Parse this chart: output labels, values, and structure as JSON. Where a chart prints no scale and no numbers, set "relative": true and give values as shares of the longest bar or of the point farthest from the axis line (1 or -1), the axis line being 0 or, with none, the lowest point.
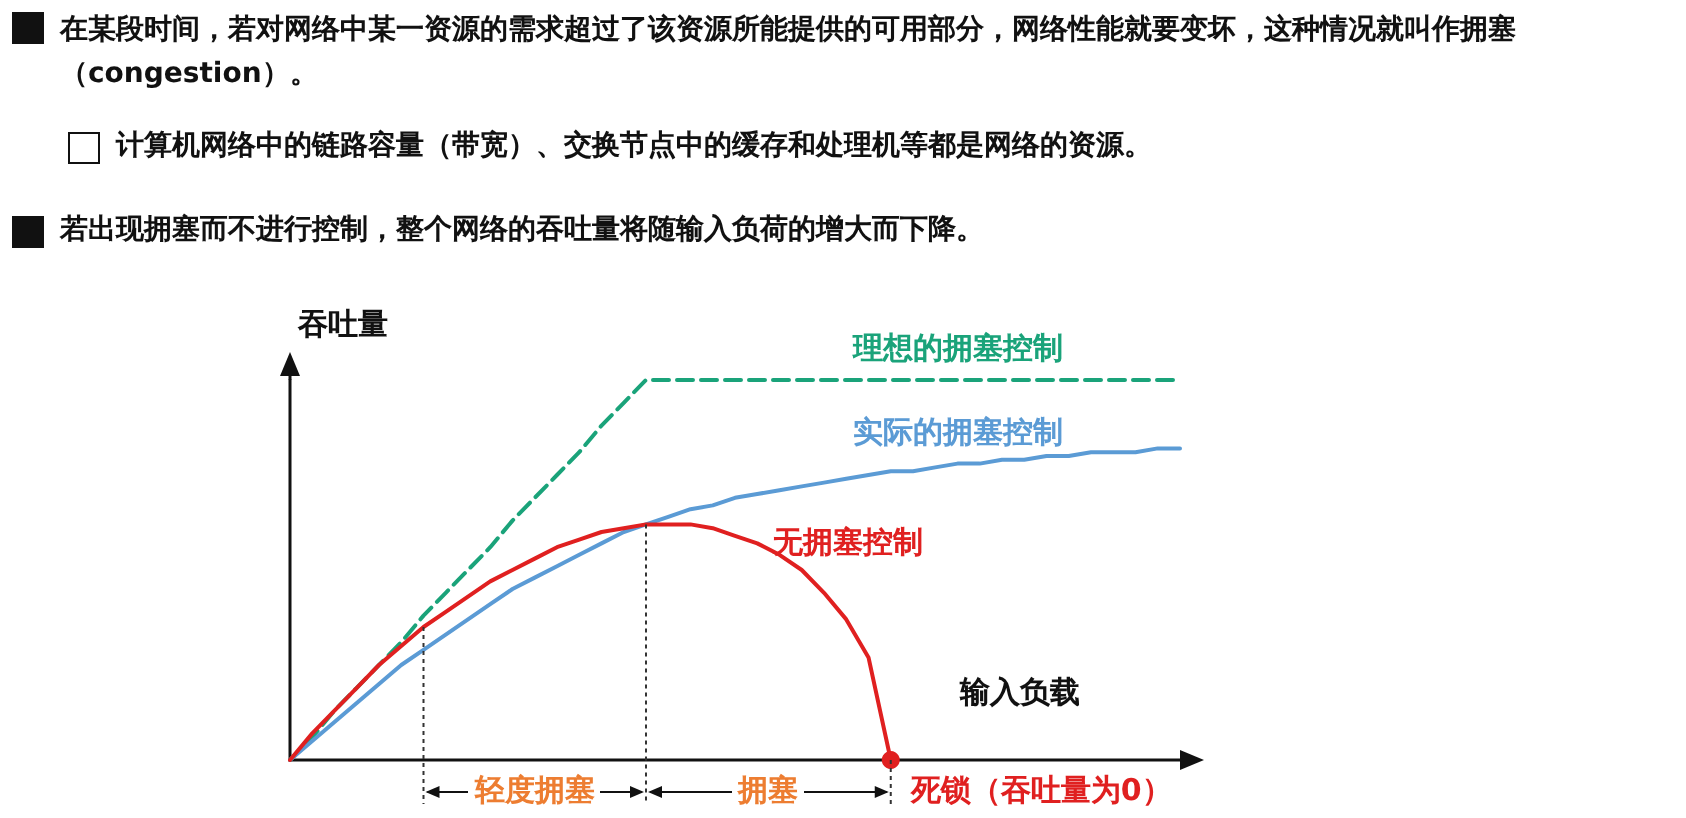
{
  "chart_data": {
    "type": "line",
    "relative": true,
    "title": "在某段时间，若对网络中某一资源的需求超过了该资源所能提供的可用部分，网络性能就要变坏，这种情况就叫作拥塞（congestion）。",
    "subtitle": "计算机网络中的链路容量（带宽）、交换节点中的缓存和处理机等都是网络的资源。",
    "annotations": [
      "若出现拥塞而不进行控制，整个网络的吞吐量将随输入负荷的增大而下降。",
      "轻度拥塞",
      "拥塞",
      "死锁（吞吐量为0）"
    ],
    "xlabel": "输入负载",
    "ylabel": "吞吐量",
    "marker": "none",
    "grid": false,
    "categories": [
      null,
      null,
      null,
      null,
      null,
      null,
      null,
      null,
      null,
      null,
      null,
      null,
      null,
      null,
      null,
      null,
      null,
      null,
      null,
      null,
      null,
      null,
      null,
      null,
      null,
      null,
      null,
      null,
      null,
      null,
      null,
      null,
      null,
      null,
      null,
      null,
      null,
      null,
      null,
      null,
      null
    ],
    "series": [
      {
        "name": "理想的拥塞控制",
        "color": "#1aa37a",
        "line_style": "dashed",
        "values": [
          0,
          0.06,
          0.13,
          0.19,
          0.25,
          0.31,
          0.38,
          0.44,
          0.5,
          0.56,
          0.63,
          0.69,
          0.75,
          0.81,
          0.88,
          0.94,
          1,
          1,
          1,
          1,
          1,
          1,
          1,
          1,
          1,
          1,
          1,
          1,
          1,
          1,
          1,
          1,
          1,
          1,
          1,
          1,
          1,
          1,
          1,
          1,
          1
        ]
      },
      {
        "name": "实际的拥塞控制",
        "color": "#5b9bd5",
        "values": [
          0,
          0.05,
          0.1,
          0.15,
          0.2,
          0.25,
          0.29,
          0.33,
          0.37,
          0.41,
          0.45,
          0.48,
          0.51,
          0.54,
          0.57,
          0.6,
          0.62,
          0.64,
          0.66,
          0.67,
          0.69,
          0.7,
          0.71,
          0.72,
          0.73,
          0.74,
          0.75,
          0.76,
          0.76,
          0.77,
          0.78,
          0.78,
          0.79,
          0.79,
          0.8,
          0.8,
          0.81,
          0.81,
          0.81,
          0.82,
          0.82
        ]
      },
      {
        "name": "无拥塞控制",
        "color": "#e02020",
        "values": [
          0,
          0.07,
          0.13,
          0.19,
          0.25,
          0.3,
          0.35,
          0.39,
          0.43,
          0.47,
          0.5,
          0.53,
          0.56,
          0.58,
          0.6,
          0.61,
          0.62,
          0.62,
          0.62,
          0.61,
          0.59,
          0.57,
          0.54,
          0.5,
          0.44,
          0.37,
          0.27,
          0,
          null,
          null,
          null,
          null,
          null,
          null,
          null,
          null,
          null,
          null,
          null,
          null,
          null
        ]
      }
    ]
  }
}
